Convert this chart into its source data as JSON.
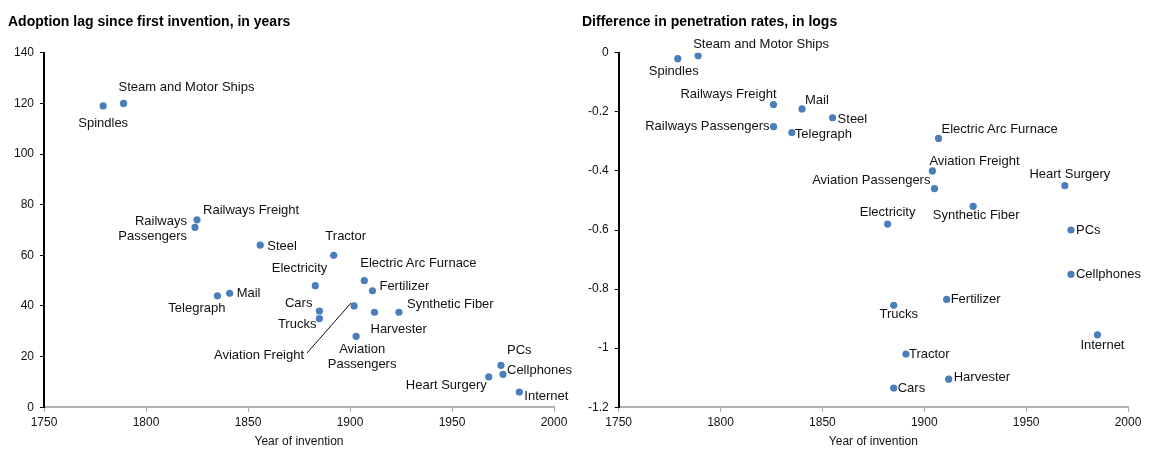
{
  "chart_data": [
    {
      "type": "scatter",
      "title": "Adoption lag since first invention, in years",
      "xlabel": "Year of invention",
      "xlim": [
        1750,
        2000
      ],
      "xticks": [
        1750,
        1800,
        1850,
        1900,
        1950,
        2000
      ],
      "ylim": [
        0,
        140
      ],
      "yticks": [
        0,
        20,
        40,
        60,
        80,
        100,
        120,
        140
      ],
      "marker": "circle",
      "x": [
        1779,
        1789,
        1825,
        1824,
        1841,
        1835,
        1856,
        1892,
        1883,
        1907,
        1911,
        1885,
        1885,
        1902,
        1903,
        1912,
        1924,
        1974,
        1975,
        1968,
        1983
      ],
      "series": [
        {
          "color": "#4a7ebb",
          "values": [
            119,
            120,
            74,
            71,
            45,
            44,
            64,
            60,
            48,
            50,
            46,
            38,
            35,
            40,
            28,
            37.5,
            37.5,
            16.5,
            13,
            12,
            6
          ]
        }
      ],
      "annotations": [
        {
          "text": "Spindles",
          "x": 1779,
          "y": 119
        },
        {
          "text": "Steam and Motor Ships",
          "x": 1789,
          "y": 120
        },
        {
          "text": "Railways Freight",
          "x": 1825,
          "y": 74
        },
        {
          "text": "Railways Passengers",
          "x": 1824,
          "y": 71
        },
        {
          "text": "Mail",
          "x": 1841,
          "y": 45
        },
        {
          "text": "Telegraph",
          "x": 1835,
          "y": 44
        },
        {
          "text": "Steel",
          "x": 1856,
          "y": 64
        },
        {
          "text": "Tractor",
          "x": 1892,
          "y": 60
        },
        {
          "text": "Electricity",
          "x": 1883,
          "y": 48
        },
        {
          "text": "Electric Arc Furnace",
          "x": 1907,
          "y": 50
        },
        {
          "text": "Fertilizer",
          "x": 1911,
          "y": 46
        },
        {
          "text": "Cars",
          "x": 1885,
          "y": 38
        },
        {
          "text": "Trucks",
          "x": 1885,
          "y": 35
        },
        {
          "text": "Aviation Freight",
          "x": 1902,
          "y": 40
        },
        {
          "text": "Aviation Passengers",
          "x": 1903,
          "y": 28
        },
        {
          "text": "Harvester",
          "x": 1912,
          "y": 37.5
        },
        {
          "text": "Synthetic Fiber",
          "x": 1924,
          "y": 37.5
        },
        {
          "text": "PCs",
          "x": 1974,
          "y": 16.5
        },
        {
          "text": "Cellphones",
          "x": 1975,
          "y": 13
        },
        {
          "text": "Heart Surgery",
          "x": 1968,
          "y": 12
        },
        {
          "text": "Internet",
          "x": 1983,
          "y": 6
        }
      ]
    },
    {
      "type": "scatter",
      "title": "Difference in penetration rates, in logs",
      "xlabel": "Year of invention",
      "xlim": [
        1750,
        2000
      ],
      "xticks": [
        1750,
        1800,
        1850,
        1900,
        1950,
        2000
      ],
      "ylim": [
        -1.2,
        0
      ],
      "yticks": [
        -1.2,
        -1,
        -0.8,
        -0.6,
        -0.4,
        -0.2,
        0
      ],
      "marker": "circle",
      "x": [
        1779,
        1789,
        1826,
        1826,
        1840,
        1835,
        1855,
        1891,
        1882,
        1907,
        1911,
        1885,
        1885,
        1904,
        1905,
        1912,
        1924,
        1972,
        1972,
        1969,
        1985
      ],
      "series": [
        {
          "color": "#4a7ebb",
          "values": [
            -0.02,
            -0.01,
            -0.175,
            -0.25,
            -0.19,
            -0.27,
            -0.22,
            -1.02,
            -0.58,
            -0.29,
            -0.835,
            -1.135,
            -0.855,
            -0.4,
            -0.46,
            -1.105,
            -0.52,
            -0.6,
            -0.75,
            -0.45,
            -0.955
          ]
        }
      ],
      "annotations": [
        {
          "text": "Spindles",
          "x": 1779,
          "y": -0.02
        },
        {
          "text": "Steam and Motor Ships",
          "x": 1789,
          "y": -0.01
        },
        {
          "text": "Railways Freight",
          "x": 1826,
          "y": -0.175
        },
        {
          "text": "Railways Passengers",
          "x": 1826,
          "y": -0.25
        },
        {
          "text": "Mail",
          "x": 1840,
          "y": -0.19
        },
        {
          "text": "Telegraph",
          "x": 1835,
          "y": -0.27
        },
        {
          "text": "Steel",
          "x": 1855,
          "y": -0.22
        },
        {
          "text": "Tractor",
          "x": 1891,
          "y": -1.02
        },
        {
          "text": "Electricity",
          "x": 1882,
          "y": -0.58
        },
        {
          "text": "Electric Arc Furnace",
          "x": 1907,
          "y": -0.29
        },
        {
          "text": "Fertilizer",
          "x": 1911,
          "y": -0.835
        },
        {
          "text": "Cars",
          "x": 1885,
          "y": -1.135
        },
        {
          "text": "Trucks",
          "x": 1885,
          "y": -0.855
        },
        {
          "text": "Aviation Freight",
          "x": 1904,
          "y": -0.4
        },
        {
          "text": "Aviation Passengers",
          "x": 1905,
          "y": -0.46
        },
        {
          "text": "Harvester",
          "x": 1912,
          "y": -1.105
        },
        {
          "text": "Synthetic Fiber",
          "x": 1924,
          "y": -0.52
        },
        {
          "text": "PCs",
          "x": 1972,
          "y": -0.6
        },
        {
          "text": "Cellphones",
          "x": 1972,
          "y": -0.75
        },
        {
          "text": "Heart Surgery",
          "x": 1969,
          "y": -0.45
        },
        {
          "text": "Internet",
          "x": 1985,
          "y": -0.955
        }
      ]
    }
  ]
}
